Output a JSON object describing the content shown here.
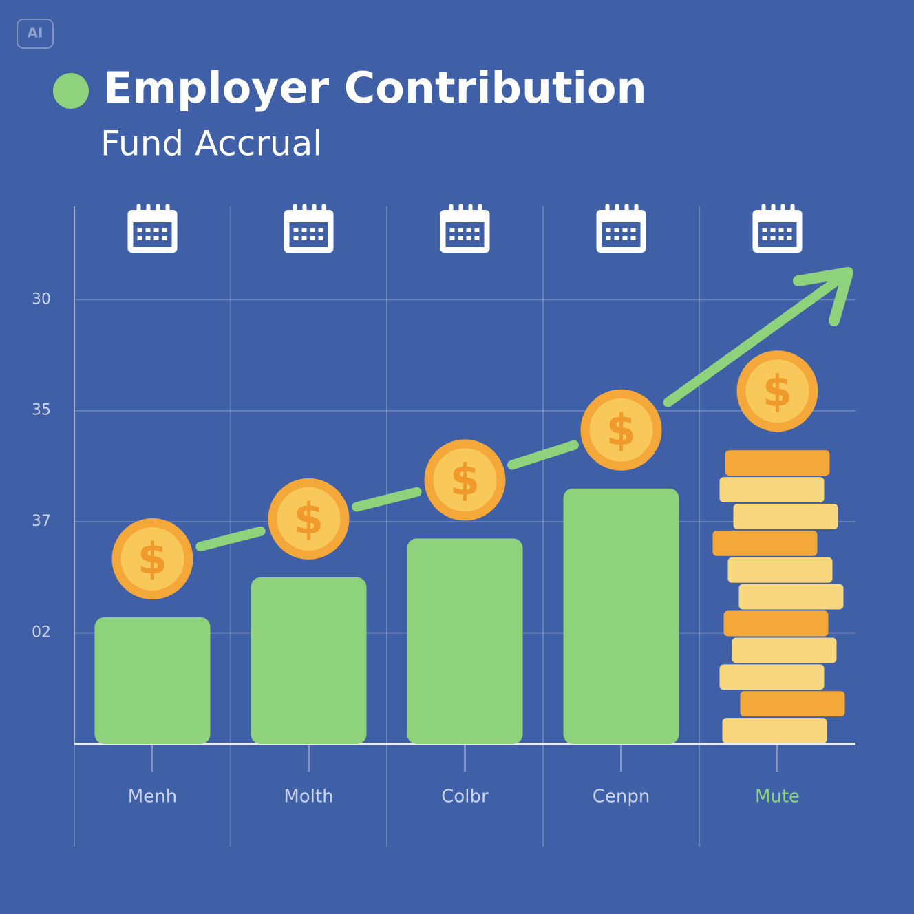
{
  "badge": "AI",
  "chart_data": {
    "type": "bar",
    "title": "Employer Contribution",
    "subtitle": "Fund Accrual",
    "categories": [
      "Menh",
      "Molth",
      "Colbr",
      "Cenpn",
      "Mute"
    ],
    "values": [
      1.14,
      1.5,
      1.85,
      2.3,
      2.65
    ],
    "color": "#8fd27c",
    "coin_symbol": "$",
    "ylim": [
      0,
      4.9
    ],
    "yticks": [
      {
        "value": 4,
        "label": "30"
      },
      {
        "value": 3,
        "label": "35"
      },
      {
        "value": 2,
        "label": "37"
      },
      {
        "value": 1,
        "label": "02"
      }
    ],
    "grid": true
  }
}
